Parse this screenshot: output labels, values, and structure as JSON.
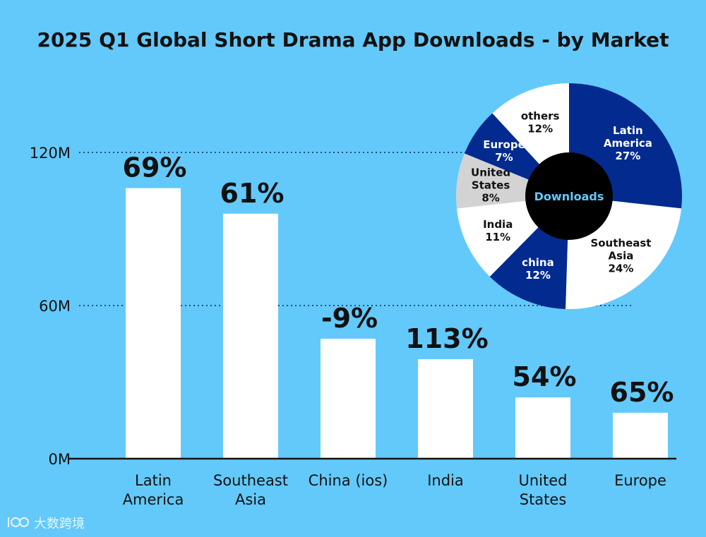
{
  "chart_data": [
    {
      "type": "bar",
      "title": "2025 Q1 Global Short Drama App Downloads - by Market",
      "categories": [
        [
          "Latin",
          "America"
        ],
        [
          "Southeast",
          "Asia"
        ],
        [
          "China (ios)"
        ],
        [
          "India"
        ],
        [
          "United",
          "States"
        ],
        [
          "Europe"
        ]
      ],
      "values": [
        106,
        96,
        47,
        39,
        24,
        18
      ],
      "growth_labels": [
        "69%",
        "61%",
        "-9%",
        "113%",
        "54%",
        "65%"
      ],
      "y_ticks": [
        {
          "value": 0,
          "label": "0M"
        },
        {
          "value": 60,
          "label": "60M"
        },
        {
          "value": 120,
          "label": "120M"
        }
      ],
      "ylim": [
        0,
        120
      ],
      "unit": "M",
      "bar_color": "#ffffff",
      "gridline_values": [
        60,
        120
      ]
    },
    {
      "type": "pie",
      "center_label": "Downloads",
      "slices": [
        {
          "lines": [
            "Latin",
            "America",
            "27%"
          ],
          "value": 27,
          "color": "#032a8e",
          "text_color": "#ffffff"
        },
        {
          "lines": [
            "Southeast",
            "Asia",
            "24%"
          ],
          "value": 24,
          "color": "#ffffff",
          "text_color": "#111111"
        },
        {
          "lines": [
            "china",
            "12%"
          ],
          "value": 12,
          "color": "#032a8e",
          "text_color": "#ffffff"
        },
        {
          "lines": [
            "India",
            "11%"
          ],
          "value": 11,
          "color": "#ffffff",
          "text_color": "#111111"
        },
        {
          "lines": [
            "United",
            "States",
            "8%"
          ],
          "value": 8,
          "color": "#d3d3d3",
          "text_color": "#111111"
        },
        {
          "lines": [
            "Europe",
            "7%"
          ],
          "value": 7,
          "color": "#032a8e",
          "text_color": "#ffffff"
        },
        {
          "lines": [
            "others",
            "12%"
          ],
          "value": 12,
          "color": "#ffffff",
          "text_color": "#111111"
        }
      ]
    }
  ],
  "watermark": "大数跨境",
  "colors": {
    "background": "#63c9fb",
    "dark_blue": "#032a8e",
    "hole": "#000000",
    "center_text": "#63c9fb"
  }
}
